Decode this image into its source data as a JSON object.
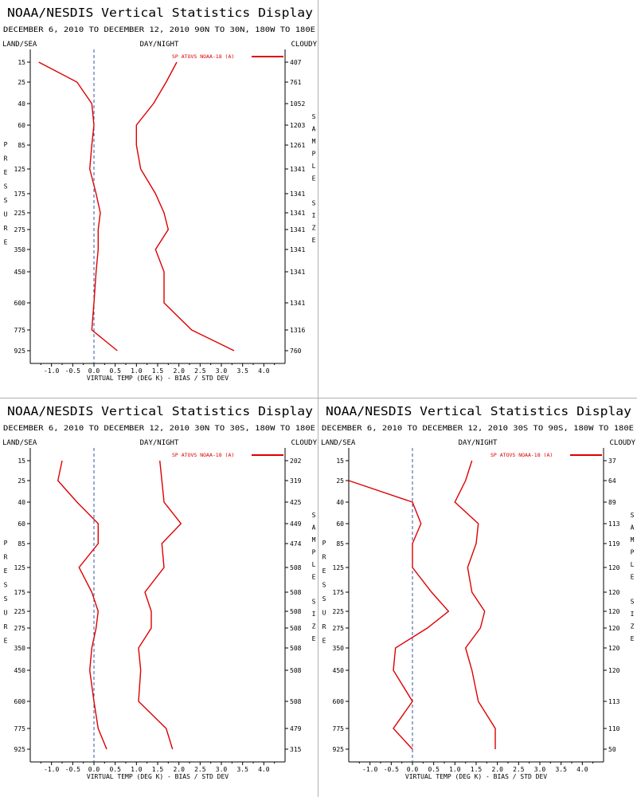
{
  "chart_data": [
    {
      "type": "line",
      "title": "NOAA/NESDIS Vertical Statistics Display",
      "subtitle": "DECEMBER 6, 2010 TO DECEMBER 12, 2010 90N TO 30N, 180W TO 180E",
      "header_left": "LAND/SEA",
      "header_center": "DAY/NIGHT",
      "header_right": "CLOUDY",
      "ylabel": "PRESSURE",
      "y2label": "SAMPLE SIZE",
      "xlabel": "VIRTUAL TEMP (DEG K) - BIAS / STD DEV",
      "legend": "SP ATOVS NOAA-18 (A)",
      "xlim": [
        -1.5,
        4.5
      ],
      "xticks": [
        "-1.0",
        "-0.5",
        "0.0",
        "0.5",
        "1.0",
        "1.5",
        "2.0",
        "2.5",
        "3.0",
        "3.5",
        "4.0"
      ],
      "pressure_levels": [
        "15",
        "25",
        "40",
        "60",
        "85",
        "125",
        "175",
        "225",
        "275",
        "350",
        "450",
        "600",
        "775",
        "925"
      ],
      "sample_size": [
        "407",
        "761",
        "1052",
        "1203",
        "1261",
        "1341",
        "1341",
        "1341",
        "1341",
        "1341",
        "1341",
        "1341",
        "1316",
        "760"
      ],
      "series": [
        {
          "values": [
            -1.3,
            -0.4,
            -0.05,
            0.0,
            -0.05,
            -0.1,
            0.05,
            0.15,
            0.1,
            0.1,
            0.05,
            0.0,
            -0.05,
            0.55
          ]
        },
        {
          "values": [
            1.95,
            1.7,
            1.4,
            1.0,
            1.0,
            1.1,
            1.45,
            1.65,
            1.75,
            1.45,
            1.65,
            1.65,
            2.3,
            3.3
          ]
        }
      ]
    },
    {
      "type": "line",
      "title": "NOAA/NESDIS Vertical Statistics Display",
      "subtitle": "DECEMBER 6, 2010 TO DECEMBER 12, 2010 30N TO 30S, 180W TO 180E",
      "header_left": "LAND/SEA",
      "header_center": "DAY/NIGHT",
      "header_right": "CLOUDY",
      "ylabel": "PRESSURE",
      "y2label": "SAMPLE SIZE",
      "xlabel": "VIRTUAL TEMP (DEG K) - BIAS / STD DEV",
      "legend": "SP ATOVS NOAA-18 (A)",
      "xlim": [
        -1.5,
        4.5
      ],
      "xticks": [
        "-1.0",
        "-0.5",
        "0.0",
        "0.5",
        "1.0",
        "1.5",
        "2.0",
        "2.5",
        "3.0",
        "3.5",
        "4.0"
      ],
      "pressure_levels": [
        "15",
        "25",
        "40",
        "60",
        "85",
        "125",
        "175",
        "225",
        "275",
        "350",
        "450",
        "600",
        "775",
        "925"
      ],
      "sample_size": [
        "202",
        "319",
        "425",
        "449",
        "474",
        "508",
        "508",
        "508",
        "508",
        "508",
        "508",
        "508",
        "479",
        "315"
      ],
      "series": [
        {
          "values": [
            -0.75,
            -0.85,
            -0.4,
            0.1,
            0.1,
            -0.35,
            -0.05,
            0.1,
            0.05,
            -0.05,
            -0.1,
            0.0,
            0.1,
            0.3
          ]
        },
        {
          "values": [
            1.55,
            1.6,
            1.65,
            2.05,
            1.6,
            1.65,
            1.2,
            1.35,
            1.35,
            1.05,
            1.1,
            1.05,
            1.7,
            1.85
          ]
        }
      ]
    },
    {
      "type": "line",
      "title": "NOAA/NESDIS Vertical Statistics Display",
      "subtitle": "DECEMBER 6, 2010 TO DECEMBER 12, 2010 30S TO 90S, 180W TO 180E",
      "header_left": "LAND/SEA",
      "header_center": "DAY/NIGHT",
      "header_right": "CLOUDY",
      "ylabel": "PRESSURE",
      "y2label": "SAMPLE SIZE",
      "xlabel": "VIRTUAL TEMP (DEG K) - BIAS / STD DEV",
      "legend": "SP ATOVS NOAA-18 (A)",
      "xlim": [
        -1.5,
        4.5
      ],
      "xticks": [
        "-1.0",
        "-0.5",
        "0.0",
        "0.5",
        "1.0",
        "1.5",
        "2.0",
        "2.5",
        "3.0",
        "3.5",
        "4.0"
      ],
      "pressure_levels": [
        "15",
        "25",
        "40",
        "60",
        "85",
        "125",
        "175",
        "225",
        "275",
        "350",
        "450",
        "600",
        "775",
        "925"
      ],
      "sample_size": [
        "37",
        "64",
        "89",
        "113",
        "119",
        "120",
        "120",
        "120",
        "120",
        "120",
        "120",
        "113",
        "110",
        "50"
      ],
      "series": [
        {
          "values": [
            null,
            -1.5,
            0.0,
            0.2,
            0.0,
            0.0,
            0.45,
            0.85,
            0.35,
            -0.4,
            -0.45,
            0.0,
            -0.45,
            0.0
          ]
        },
        {
          "values": [
            1.4,
            1.25,
            1.0,
            1.55,
            1.5,
            1.3,
            1.4,
            1.7,
            1.6,
            1.25,
            1.4,
            1.55,
            1.95,
            1.95
          ]
        }
      ]
    }
  ],
  "colors": {
    "line": "#dd0000",
    "axis": "#000000",
    "zero": "#3355aa"
  }
}
